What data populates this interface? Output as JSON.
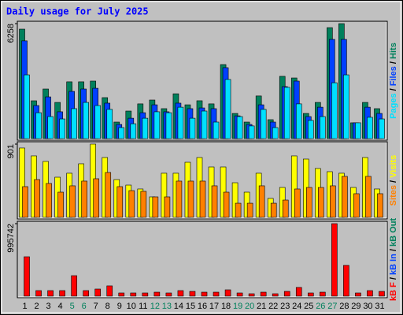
{
  "chart_data": [
    {
      "type": "bar",
      "title": "Daily usage for July 2025",
      "ylim": [
        0,
        6258
      ],
      "yticks": [
        6258
      ],
      "legend_separator": " / ",
      "series": [
        {
          "name": "Hits",
          "color": "#00805c",
          "values": [
            5958,
            2058,
            2700,
            1970,
            3090,
            3090,
            3130,
            2230,
            900,
            1500,
            1890,
            2100,
            1630,
            2440,
            1840,
            2060,
            1890,
            4030,
            1370,
            900,
            2320,
            1030,
            3390,
            3300,
            1370,
            1970,
            6040,
            6258,
            860,
            1970,
            1630
          ]
        },
        {
          "name": "Files",
          "color": "#0040ff",
          "values": [
            5320,
            1800,
            2270,
            1460,
            2570,
            2700,
            2740,
            1930,
            770,
            1110,
            1410,
            1840,
            1460,
            1930,
            1630,
            1670,
            1630,
            3860,
            1240,
            770,
            1840,
            900,
            2830,
            3130,
            1200,
            1710,
            5400,
            5400,
            860,
            1710,
            1370
          ]
        },
        {
          "name": "Pages",
          "color": "#00e0ff",
          "values": [
            3470,
            1410,
            1200,
            1070,
            1630,
            1970,
            1800,
            1590,
            600,
            810,
            1110,
            1460,
            1410,
            1710,
            1110,
            1500,
            900,
            3220,
            1200,
            690,
            1590,
            600,
            2790,
            1890,
            990,
            1200,
            3040,
            3470,
            860,
            1160,
            1070
          ]
        }
      ]
    },
    {
      "type": "bar",
      "ylim": [
        0,
        901
      ],
      "yticks": [
        901
      ],
      "legend_separator": " / ",
      "series": [
        {
          "name": "Visits",
          "color": "#ffff00",
          "values": [
            853,
            756,
            688,
            494,
            543,
            659,
            901,
            736,
            465,
            397,
            349,
            252,
            543,
            543,
            678,
            736,
            620,
            620,
            426,
            310,
            543,
            233,
            368,
            756,
            717,
            601,
            562,
            543,
            368,
            736,
            349
          ]
        },
        {
          "name": "Sites",
          "color": "#ff8000",
          "values": [
            378,
            465,
            417,
            310,
            388,
            446,
            475,
            552,
            378,
            329,
            320,
            252,
            252,
            446,
            446,
            446,
            388,
            310,
            174,
            174,
            388,
            174,
            213,
            349,
            368,
            368,
            388,
            504,
            291,
            504,
            291
          ]
        }
      ]
    },
    {
      "type": "bar",
      "ylim": [
        0,
        995742
      ],
      "yticks": [
        995742
      ],
      "legend_separator": " / ",
      "categories": [
        "1",
        "2",
        "3",
        "4",
        "5",
        "6",
        "7",
        "8",
        "9",
        "10",
        "11",
        "12",
        "13",
        "14",
        "15",
        "16",
        "17",
        "18",
        "19",
        "20",
        "21",
        "22",
        "23",
        "24",
        "25",
        "26",
        "27",
        "28",
        "29",
        "30",
        "31"
      ],
      "category_colors": [
        "#000000",
        "#000000",
        "#000000",
        "#000000",
        "#00805c",
        "#00805c",
        "#000000",
        "#000000",
        "#000000",
        "#000000",
        "#000000",
        "#00805c",
        "#00805c",
        "#000000",
        "#000000",
        "#000000",
        "#000000",
        "#000000",
        "#00805c",
        "#00805c",
        "#000000",
        "#000000",
        "#000000",
        "#000000",
        "#000000",
        "#00805c",
        "#00805c",
        "#000000",
        "#000000",
        "#000000",
        "#000000"
      ],
      "series": [
        {
          "name": "kB Out",
          "color": "#00805c",
          "values": [
            0,
            0,
            0,
            0,
            0,
            0,
            0,
            0,
            0,
            0,
            0,
            0,
            0,
            0,
            0,
            0,
            0,
            0,
            0,
            0,
            0,
            0,
            0,
            0,
            0,
            0,
            0,
            0,
            0,
            0,
            0
          ]
        },
        {
          "name": "kB In",
          "color": "#0040ff",
          "values": [
            0,
            0,
            0,
            0,
            0,
            0,
            0,
            0,
            0,
            0,
            0,
            0,
            0,
            0,
            0,
            0,
            0,
            0,
            0,
            0,
            0,
            0,
            0,
            0,
            0,
            0,
            0,
            0,
            0,
            0,
            0
          ]
        },
        {
          "name": "kB F",
          "color": "#ff0000",
          "values": [
            541000,
            75800,
            75800,
            75800,
            281000,
            75800,
            97400,
            141000,
            43300,
            43300,
            43300,
            54100,
            43300,
            75800,
            64900,
            54100,
            54100,
            86600,
            43300,
            32500,
            54100,
            32500,
            64900,
            119000,
            43300,
            54100,
            995742,
            422000,
            43300,
            75800,
            64900
          ]
        }
      ]
    }
  ]
}
